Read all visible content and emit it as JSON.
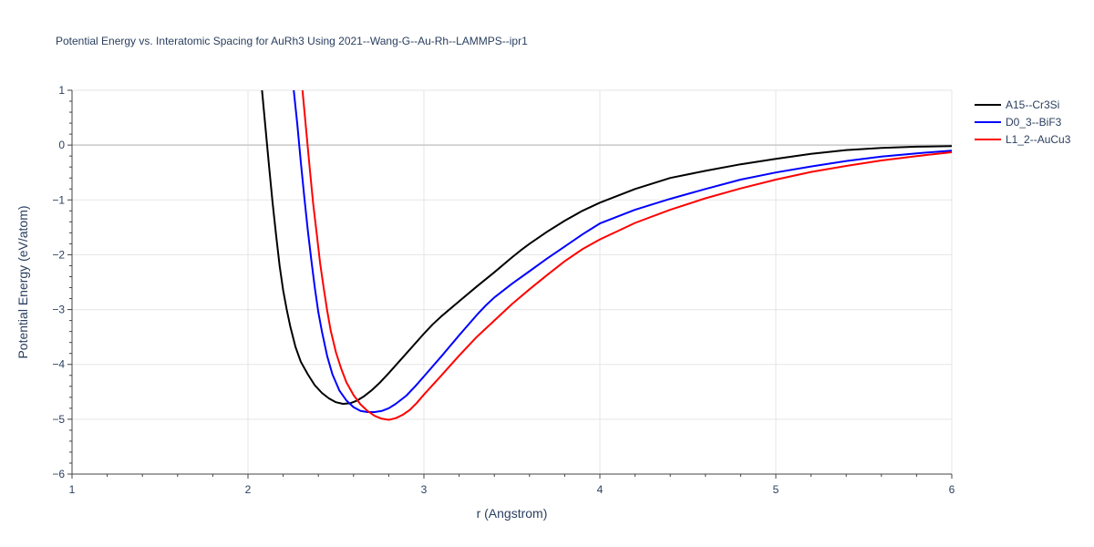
{
  "chart_data": {
    "type": "line",
    "title": "Potential Energy vs. Interatomic Spacing for AuRh3 Using 2021--Wang-G--Au-Rh--LAMMPS--ipr1",
    "xlabel": "r (Angstrom)",
    "ylabel": "Potential Energy (eV/atom)",
    "xlim": [
      1,
      6
    ],
    "ylim": [
      -6,
      1
    ],
    "x_ticks": [
      1,
      2,
      3,
      4,
      5,
      6
    ],
    "y_ticks": [
      1,
      0,
      -1,
      -2,
      -3,
      -4,
      -5,
      -6
    ],
    "x_tick_labels": [
      "1",
      "2",
      "3",
      "4",
      "5",
      "6"
    ],
    "y_tick_labels": [
      "1",
      "0",
      "−1",
      "−2",
      "−3",
      "−4",
      "−5",
      "−6"
    ],
    "grid": true,
    "legend_position": "top-right",
    "series": [
      {
        "name": "A15--Cr3Si",
        "color": "#000000",
        "x": [
          2.08,
          2.1,
          2.12,
          2.14,
          2.16,
          2.18,
          2.2,
          2.22,
          2.24,
          2.27,
          2.3,
          2.34,
          2.38,
          2.42,
          2.46,
          2.5,
          2.54,
          2.58,
          2.62,
          2.66,
          2.7,
          2.75,
          2.8,
          2.9,
          3.0,
          3.05,
          3.1,
          3.2,
          3.3,
          3.4,
          3.5,
          3.55,
          3.6,
          3.7,
          3.8,
          3.9,
          4.0,
          4.2,
          4.4,
          4.6,
          4.8,
          5.0,
          5.2,
          5.4,
          5.6,
          5.8,
          6.0
        ],
        "y": [
          1.0,
          0.3,
          -0.4,
          -1.05,
          -1.65,
          -2.2,
          -2.65,
          -3.0,
          -3.3,
          -3.68,
          -3.95,
          -4.18,
          -4.38,
          -4.52,
          -4.62,
          -4.69,
          -4.72,
          -4.71,
          -4.66,
          -4.58,
          -4.48,
          -4.33,
          -4.16,
          -3.8,
          -3.44,
          -3.27,
          -3.12,
          -2.85,
          -2.58,
          -2.32,
          -2.05,
          -1.92,
          -1.8,
          -1.58,
          -1.38,
          -1.2,
          -1.05,
          -0.8,
          -0.6,
          -0.47,
          -0.35,
          -0.25,
          -0.16,
          -0.09,
          -0.05,
          -0.03,
          -0.02
        ]
      },
      {
        "name": "D0_3--BiF3",
        "color": "#0000ff",
        "x": [
          2.26,
          2.28,
          2.3,
          2.32,
          2.34,
          2.36,
          2.38,
          2.4,
          2.42,
          2.45,
          2.48,
          2.52,
          2.56,
          2.6,
          2.64,
          2.68,
          2.72,
          2.76,
          2.8,
          2.84,
          2.9,
          2.95,
          3.0,
          3.1,
          3.2,
          3.3,
          3.35,
          3.4,
          3.5,
          3.6,
          3.7,
          3.8,
          3.9,
          4.0,
          4.2,
          4.4,
          4.6,
          4.8,
          5.0,
          5.2,
          5.4,
          5.6,
          5.8,
          6.0
        ],
        "y": [
          1.0,
          0.4,
          -0.3,
          -0.95,
          -1.55,
          -2.1,
          -2.6,
          -3.05,
          -3.4,
          -3.85,
          -4.18,
          -4.48,
          -4.66,
          -4.78,
          -4.85,
          -4.87,
          -4.87,
          -4.85,
          -4.8,
          -4.72,
          -4.57,
          -4.4,
          -4.22,
          -3.85,
          -3.47,
          -3.1,
          -2.93,
          -2.78,
          -2.53,
          -2.3,
          -2.07,
          -1.85,
          -1.63,
          -1.43,
          -1.18,
          -0.98,
          -0.8,
          -0.63,
          -0.5,
          -0.39,
          -0.29,
          -0.21,
          -0.15,
          -0.1
        ]
      },
      {
        "name": "L1_2--AuCu3",
        "color": "#ff0000",
        "x": [
          2.31,
          2.33,
          2.35,
          2.37,
          2.39,
          2.41,
          2.43,
          2.45,
          2.47,
          2.5,
          2.53,
          2.56,
          2.6,
          2.64,
          2.68,
          2.72,
          2.76,
          2.8,
          2.84,
          2.88,
          2.92,
          2.96,
          3.0,
          3.1,
          3.2,
          3.3,
          3.4,
          3.5,
          3.6,
          3.7,
          3.8,
          3.9,
          4.0,
          4.1,
          4.2,
          4.4,
          4.6,
          4.8,
          5.0,
          5.2,
          5.4,
          5.6,
          5.8,
          6.0
        ],
        "y": [
          1.0,
          0.3,
          -0.4,
          -1.05,
          -1.6,
          -2.15,
          -2.6,
          -3.02,
          -3.38,
          -3.78,
          -4.08,
          -4.33,
          -4.56,
          -4.73,
          -4.85,
          -4.94,
          -4.99,
          -5.01,
          -4.98,
          -4.92,
          -4.83,
          -4.7,
          -4.55,
          -4.2,
          -3.84,
          -3.5,
          -3.2,
          -2.9,
          -2.63,
          -2.37,
          -2.12,
          -1.9,
          -1.72,
          -1.57,
          -1.42,
          -1.18,
          -0.97,
          -0.79,
          -0.63,
          -0.49,
          -0.38,
          -0.28,
          -0.2,
          -0.13
        ]
      }
    ]
  }
}
